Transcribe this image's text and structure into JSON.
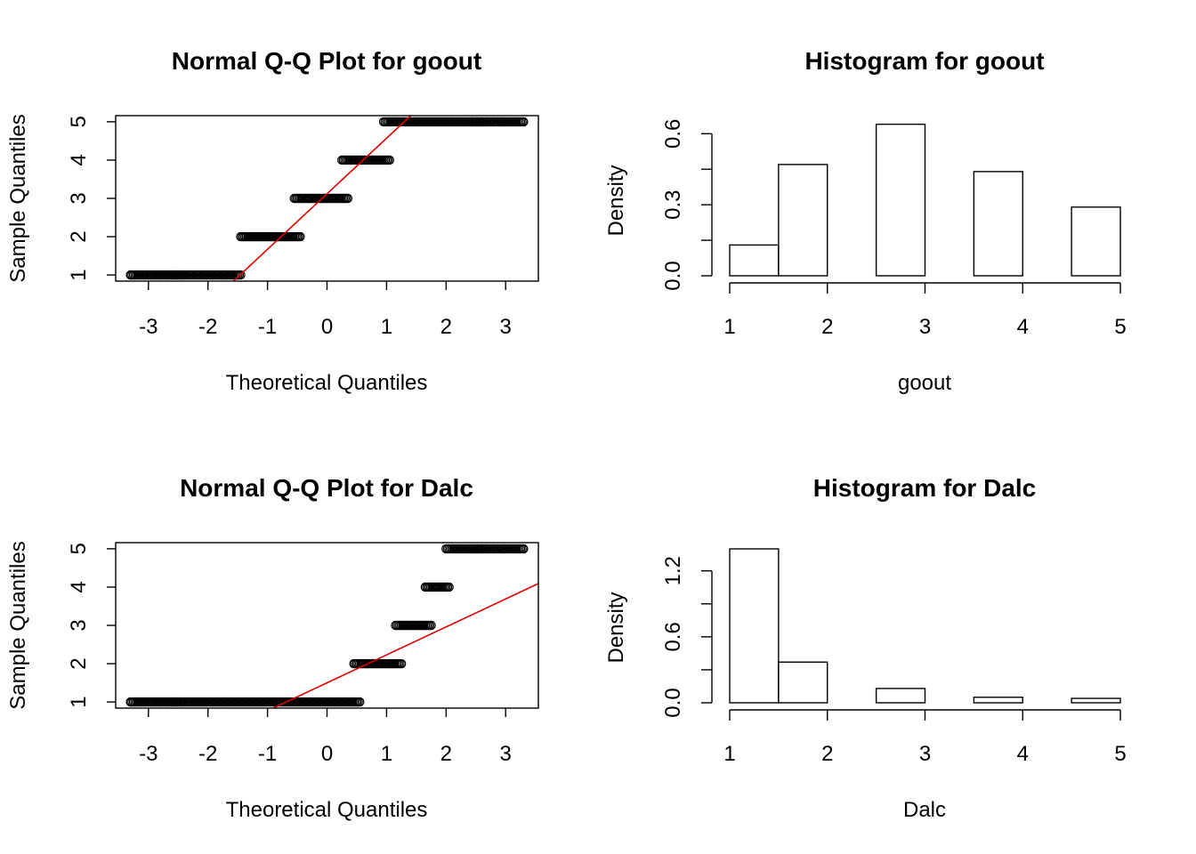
{
  "chart_data": [
    {
      "type": "scatter",
      "subtype": "normal-qq",
      "title": "Normal Q-Q Plot for  goout",
      "xlabel": "Theoretical Quantiles",
      "ylabel": "Sample Quantiles",
      "xlim": [
        -3.55,
        3.55
      ],
      "ylim": [
        0.84,
        5.16
      ],
      "xticks": [
        "-3",
        "-2",
        "-1",
        "0",
        "1",
        "2",
        "3"
      ],
      "yticks": [
        "1",
        "2",
        "3",
        "4",
        "5"
      ],
      "sample_values": [
        1,
        2,
        3,
        4,
        5
      ],
      "x_ranges": [
        [
          -3.3,
          -1.45
        ],
        [
          -1.45,
          -0.45
        ],
        [
          -0.55,
          0.35
        ],
        [
          0.25,
          1.05
        ],
        [
          0.95,
          3.3
        ]
      ],
      "qq_line": {
        "intercept": 3.12,
        "slope": 1.45,
        "color": "#dd0000"
      }
    },
    {
      "type": "bar",
      "subtype": "histogram",
      "title": "Histogram for  goout",
      "xlabel": "goout",
      "ylabel": "Density",
      "xlim": [
        1,
        5
      ],
      "ylim": [
        0,
        0.65
      ],
      "xticks": [
        "1",
        "2",
        "3",
        "4",
        "5"
      ],
      "yticks": [
        "0.0",
        "0.3",
        "0.6"
      ],
      "bins": [
        [
          1.0,
          1.5
        ],
        [
          1.5,
          2.0
        ],
        [
          2.0,
          2.5
        ],
        [
          2.5,
          3.0
        ],
        [
          3.0,
          3.5
        ],
        [
          3.5,
          4.0
        ],
        [
          4.0,
          4.5
        ],
        [
          4.5,
          5.0
        ]
      ],
      "values": [
        0.13,
        0.47,
        0.0,
        0.64,
        0.0,
        0.44,
        0.0,
        0.29
      ]
    },
    {
      "type": "scatter",
      "subtype": "normal-qq",
      "title": "Normal Q-Q Plot for  Dalc",
      "xlabel": "Theoretical Quantiles",
      "ylabel": "Sample Quantiles",
      "xlim": [
        -3.55,
        3.55
      ],
      "ylim": [
        0.84,
        5.16
      ],
      "xticks": [
        "-3",
        "-2",
        "-1",
        "0",
        "1",
        "2",
        "3"
      ],
      "yticks": [
        "1",
        "2",
        "3",
        "4",
        "5"
      ],
      "sample_values": [
        1,
        2,
        3,
        4,
        5
      ],
      "x_ranges": [
        [
          -3.3,
          0.55
        ],
        [
          0.45,
          1.25
        ],
        [
          1.15,
          1.75
        ],
        [
          1.65,
          2.05
        ],
        [
          2.0,
          3.3
        ]
      ],
      "qq_line": {
        "intercept": 1.5,
        "slope": 0.73,
        "color": "#dd0000"
      }
    },
    {
      "type": "bar",
      "subtype": "histogram",
      "title": "Histogram for  Dalc",
      "xlabel": "Dalc",
      "ylabel": "Density",
      "xlim": [
        1,
        5
      ],
      "ylim": [
        0,
        1.4
      ],
      "xticks": [
        "1",
        "2",
        "3",
        "4",
        "5"
      ],
      "yticks": [
        "0.0",
        "0.6",
        "1.2"
      ],
      "bins": [
        [
          1.0,
          1.5
        ],
        [
          1.5,
          2.0
        ],
        [
          2.0,
          2.5
        ],
        [
          2.5,
          3.0
        ],
        [
          3.0,
          3.5
        ],
        [
          3.5,
          4.0
        ],
        [
          4.0,
          4.5
        ],
        [
          4.5,
          5.0
        ]
      ],
      "values": [
        1.4,
        0.37,
        0.0,
        0.13,
        0.0,
        0.05,
        0.0,
        0.04
      ]
    }
  ]
}
